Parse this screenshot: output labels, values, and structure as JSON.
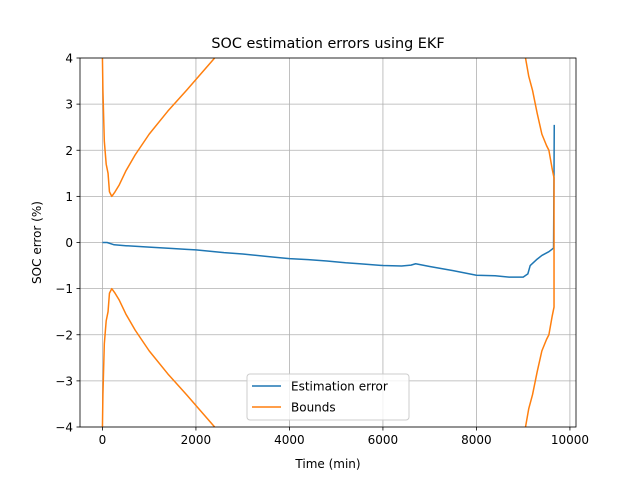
{
  "chart_data": {
    "type": "line",
    "title": "SOC estimation errors using EKF",
    "xlabel": "Time (min)",
    "ylabel": "SOC error (%)",
    "xlim": [
      -480,
      10130
    ],
    "ylim": [
      -4,
      4
    ],
    "xticks": [
      0,
      2000,
      4000,
      6000,
      8000,
      10000
    ],
    "xtick_labels": [
      "0",
      "2000",
      "4000",
      "6000",
      "8000",
      "10000"
    ],
    "yticks": [
      -4,
      -3,
      -2,
      -1,
      0,
      1,
      2,
      3,
      4
    ],
    "ytick_labels": [
      "−4",
      "−3",
      "−2",
      "−1",
      "0",
      "1",
      "2",
      "3",
      "4"
    ],
    "grid": true,
    "legend_position": "lower center",
    "series": [
      {
        "name": "Estimation error",
        "color": "#1f77b4",
        "segments": [
          [
            [
              0,
              0
            ],
            [
              100,
              0
            ],
            [
              250,
              -0.05
            ],
            [
              500,
              -0.07
            ],
            [
              1000,
              -0.1
            ],
            [
              1500,
              -0.13
            ],
            [
              1800,
              -0.15
            ],
            [
              2000,
              -0.16
            ],
            [
              2300,
              -0.19
            ],
            [
              2600,
              -0.22
            ],
            [
              3000,
              -0.25
            ],
            [
              3500,
              -0.3
            ],
            [
              3800,
              -0.33
            ],
            [
              4000,
              -0.35
            ],
            [
              4400,
              -0.37
            ],
            [
              4800,
              -0.4
            ],
            [
              5200,
              -0.44
            ],
            [
              5500,
              -0.46
            ],
            [
              6000,
              -0.5
            ],
            [
              6400,
              -0.51
            ],
            [
              6600,
              -0.49
            ],
            [
              6700,
              -0.46
            ],
            [
              7000,
              -0.52
            ],
            [
              7500,
              -0.61
            ],
            [
              8000,
              -0.71
            ],
            [
              8400,
              -0.72
            ],
            [
              8700,
              -0.75
            ],
            [
              9000,
              -0.75
            ],
            [
              9100,
              -0.68
            ],
            [
              9150,
              -0.5
            ],
            [
              9300,
              -0.36
            ],
            [
              9400,
              -0.28
            ],
            [
              9550,
              -0.2
            ],
            [
              9650,
              -0.12
            ],
            [
              9660,
              1.6
            ],
            [
              9665,
              2.55
            ]
          ]
        ]
      },
      {
        "name": "Bounds",
        "color": "#ff7f0e",
        "segments": [
          [
            [
              0,
              4
            ],
            [
              10,
              3.3
            ],
            [
              40,
              2.2
            ],
            [
              80,
              1.7
            ],
            [
              120,
              1.5
            ],
            [
              150,
              1.1
            ],
            [
              200,
              1.0
            ],
            [
              270,
              1.1
            ],
            [
              360,
              1.25
            ],
            [
              500,
              1.55
            ],
            [
              700,
              1.9
            ],
            [
              1000,
              2.35
            ],
            [
              1400,
              2.85
            ],
            [
              1800,
              3.3
            ],
            [
              2100,
              3.65
            ],
            [
              2400,
              4
            ]
          ],
          [
            [
              0,
              -4
            ],
            [
              10,
              -3.3
            ],
            [
              40,
              -2.2
            ],
            [
              80,
              -1.7
            ],
            [
              120,
              -1.5
            ],
            [
              150,
              -1.1
            ],
            [
              200,
              -1.0
            ],
            [
              270,
              -1.1
            ],
            [
              360,
              -1.25
            ],
            [
              500,
              -1.55
            ],
            [
              700,
              -1.9
            ],
            [
              1000,
              -2.35
            ],
            [
              1400,
              -2.85
            ],
            [
              1800,
              -3.3
            ],
            [
              2100,
              -3.65
            ],
            [
              2400,
              -4
            ]
          ],
          [
            [
              9050,
              4
            ],
            [
              9120,
              3.6
            ],
            [
              9200,
              3.3
            ],
            [
              9300,
              2.8
            ],
            [
              9400,
              2.35
            ],
            [
              9500,
              2.1
            ],
            [
              9550,
              2.0
            ],
            [
              9620,
              1.6
            ],
            [
              9660,
              1.4
            ],
            [
              9660,
              -1.4
            ],
            [
              9620,
              -1.6
            ],
            [
              9550,
              -2.0
            ],
            [
              9500,
              -2.1
            ],
            [
              9400,
              -2.35
            ],
            [
              9300,
              -2.8
            ],
            [
              9200,
              -3.3
            ],
            [
              9120,
              -3.6
            ],
            [
              9050,
              -4
            ]
          ]
        ]
      }
    ]
  }
}
